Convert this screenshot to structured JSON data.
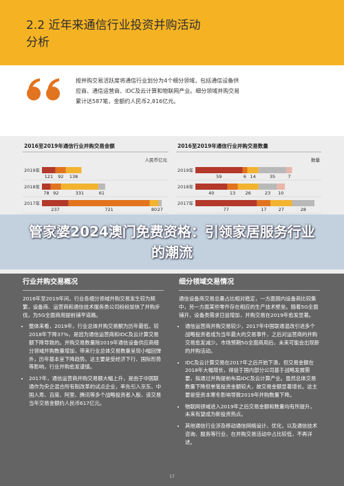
{
  "header": {
    "title_line1": "2.2 近年来通信行业投资并购活动",
    "title_line2": "分析"
  },
  "quote": {
    "text": "按并购交易活跃度将通信行业划分为4个细分领域，包括通信设备供应商、通信运营商、IDC及云计算和物联网产业。细分领域并购交易累计达587笔，金额约人民币2,816亿元。"
  },
  "chart_data": [
    {
      "type": "stacked-bar",
      "title": "2016至2019年通信行业并购交易金额",
      "unit": "人民币亿元",
      "categories": [
        "2019年",
        "2018年",
        "2017年"
      ],
      "series": [
        {
          "color": "#b3392a",
          "values": [
            121,
            78,
            237
          ]
        },
        {
          "color": "#e2731f",
          "values": [
            92,
            92,
            721
          ]
        },
        {
          "color": "#f2b32f",
          "values": [
            138,
            331,
            80
          ]
        },
        {
          "color": "#b9b9b9",
          "values": [
            null,
            61,
            27
          ]
        }
      ]
    },
    {
      "type": "stacked-bar",
      "title": "2016至2019年通信行业并购交易数量",
      "unit": "数量",
      "categories": [
        "2019年",
        "2018年",
        "2017年"
      ],
      "series": [
        {
          "color": "#b3392a",
          "values": [
            59,
            40,
            77
          ]
        },
        {
          "color": "#e2731f",
          "values": [
            6,
            13,
            17
          ]
        },
        {
          "color": "#f2b32f",
          "values": [
            14,
            26,
            27
          ]
        },
        {
          "color": "#b9b9b9",
          "values": [
            35,
            23,
            28
          ]
        },
        {
          "color": "#e9b7aa",
          "values": [
            7,
            10,
            null
          ]
        }
      ]
    }
  ],
  "overlay": {
    "text": "管家婆2024澳门免费资格：引领家居服务行业的潮流"
  },
  "sections": [
    {
      "heading": "行业并购交易概况",
      "intro": "2016年至2019年间，行业各细分领域并购交易发生较为频繁，设备商、运营商和通信技术服务类公司纷纷加快了并购步伐，为5G全面商用提前铺平道路。",
      "bullets": [
        "整体来看，2019年，行业总体并购交易额为历年最低，较2018年下降37%，是因为通信运营商和IDC及云计算交易额下降导致的。并购交易数量除2019年通信设备供应商细分领域并购数量增加，带来行业总体交易数量呈现小幅回弹外，历年基本呈下降趋势。这主要是受经济下行、国际形势等影响，行业并购愈发谨慎。",
        "2017年，通信运营商并购交易额大幅上升，是由于中国联通作为央企混合所有制改革的试点企业，率先引入京东、中国人寿、百度、阿里、腾讯等多个战略投资者入股，该交易当年交易金额约人民币617亿元。"
      ]
    },
    {
      "heading": "细分领域交易情况",
      "intro": "通信设备商交易总量占比相对稳定，一方面国内设备商比较集中，另一方面某些零件存在相应的生产技术壁垒。随着5G全面铺开，设备类需求日益增加，并购交易在2019年愈发显著。",
      "bullets": [
        "通信运营商并购交易较少，2017年中国联通混改引进多个战略投资者成为当年最大的交易事件，之后对运营商的并购交易愈发减少。市场预期5G全面商用后，未来可能会出现新的并购活动。",
        "IDC及云计算交易在2017年之后开始下滑，但交易金额在2018年大幅增长，得益于国内部分公司基于战略发展需要，拟通过并购提前布局IDC及云计算产业。虽然总体交易数量下降但单笔投资金额较大，故交易金额显著增长。这主要是受资本寒冬影响导致2019年并购数量下降。",
        "物联网领域进入2019年之后交易金额和数量均有所提升，未来有望成为新投资热点。",
        "其他通信行业涉及移动通信网络设计、优化，以及通信技术咨询、服务等行业，在并购交易活动中占比较低，不再详述。"
      ]
    }
  ],
  "page_number": "17"
}
